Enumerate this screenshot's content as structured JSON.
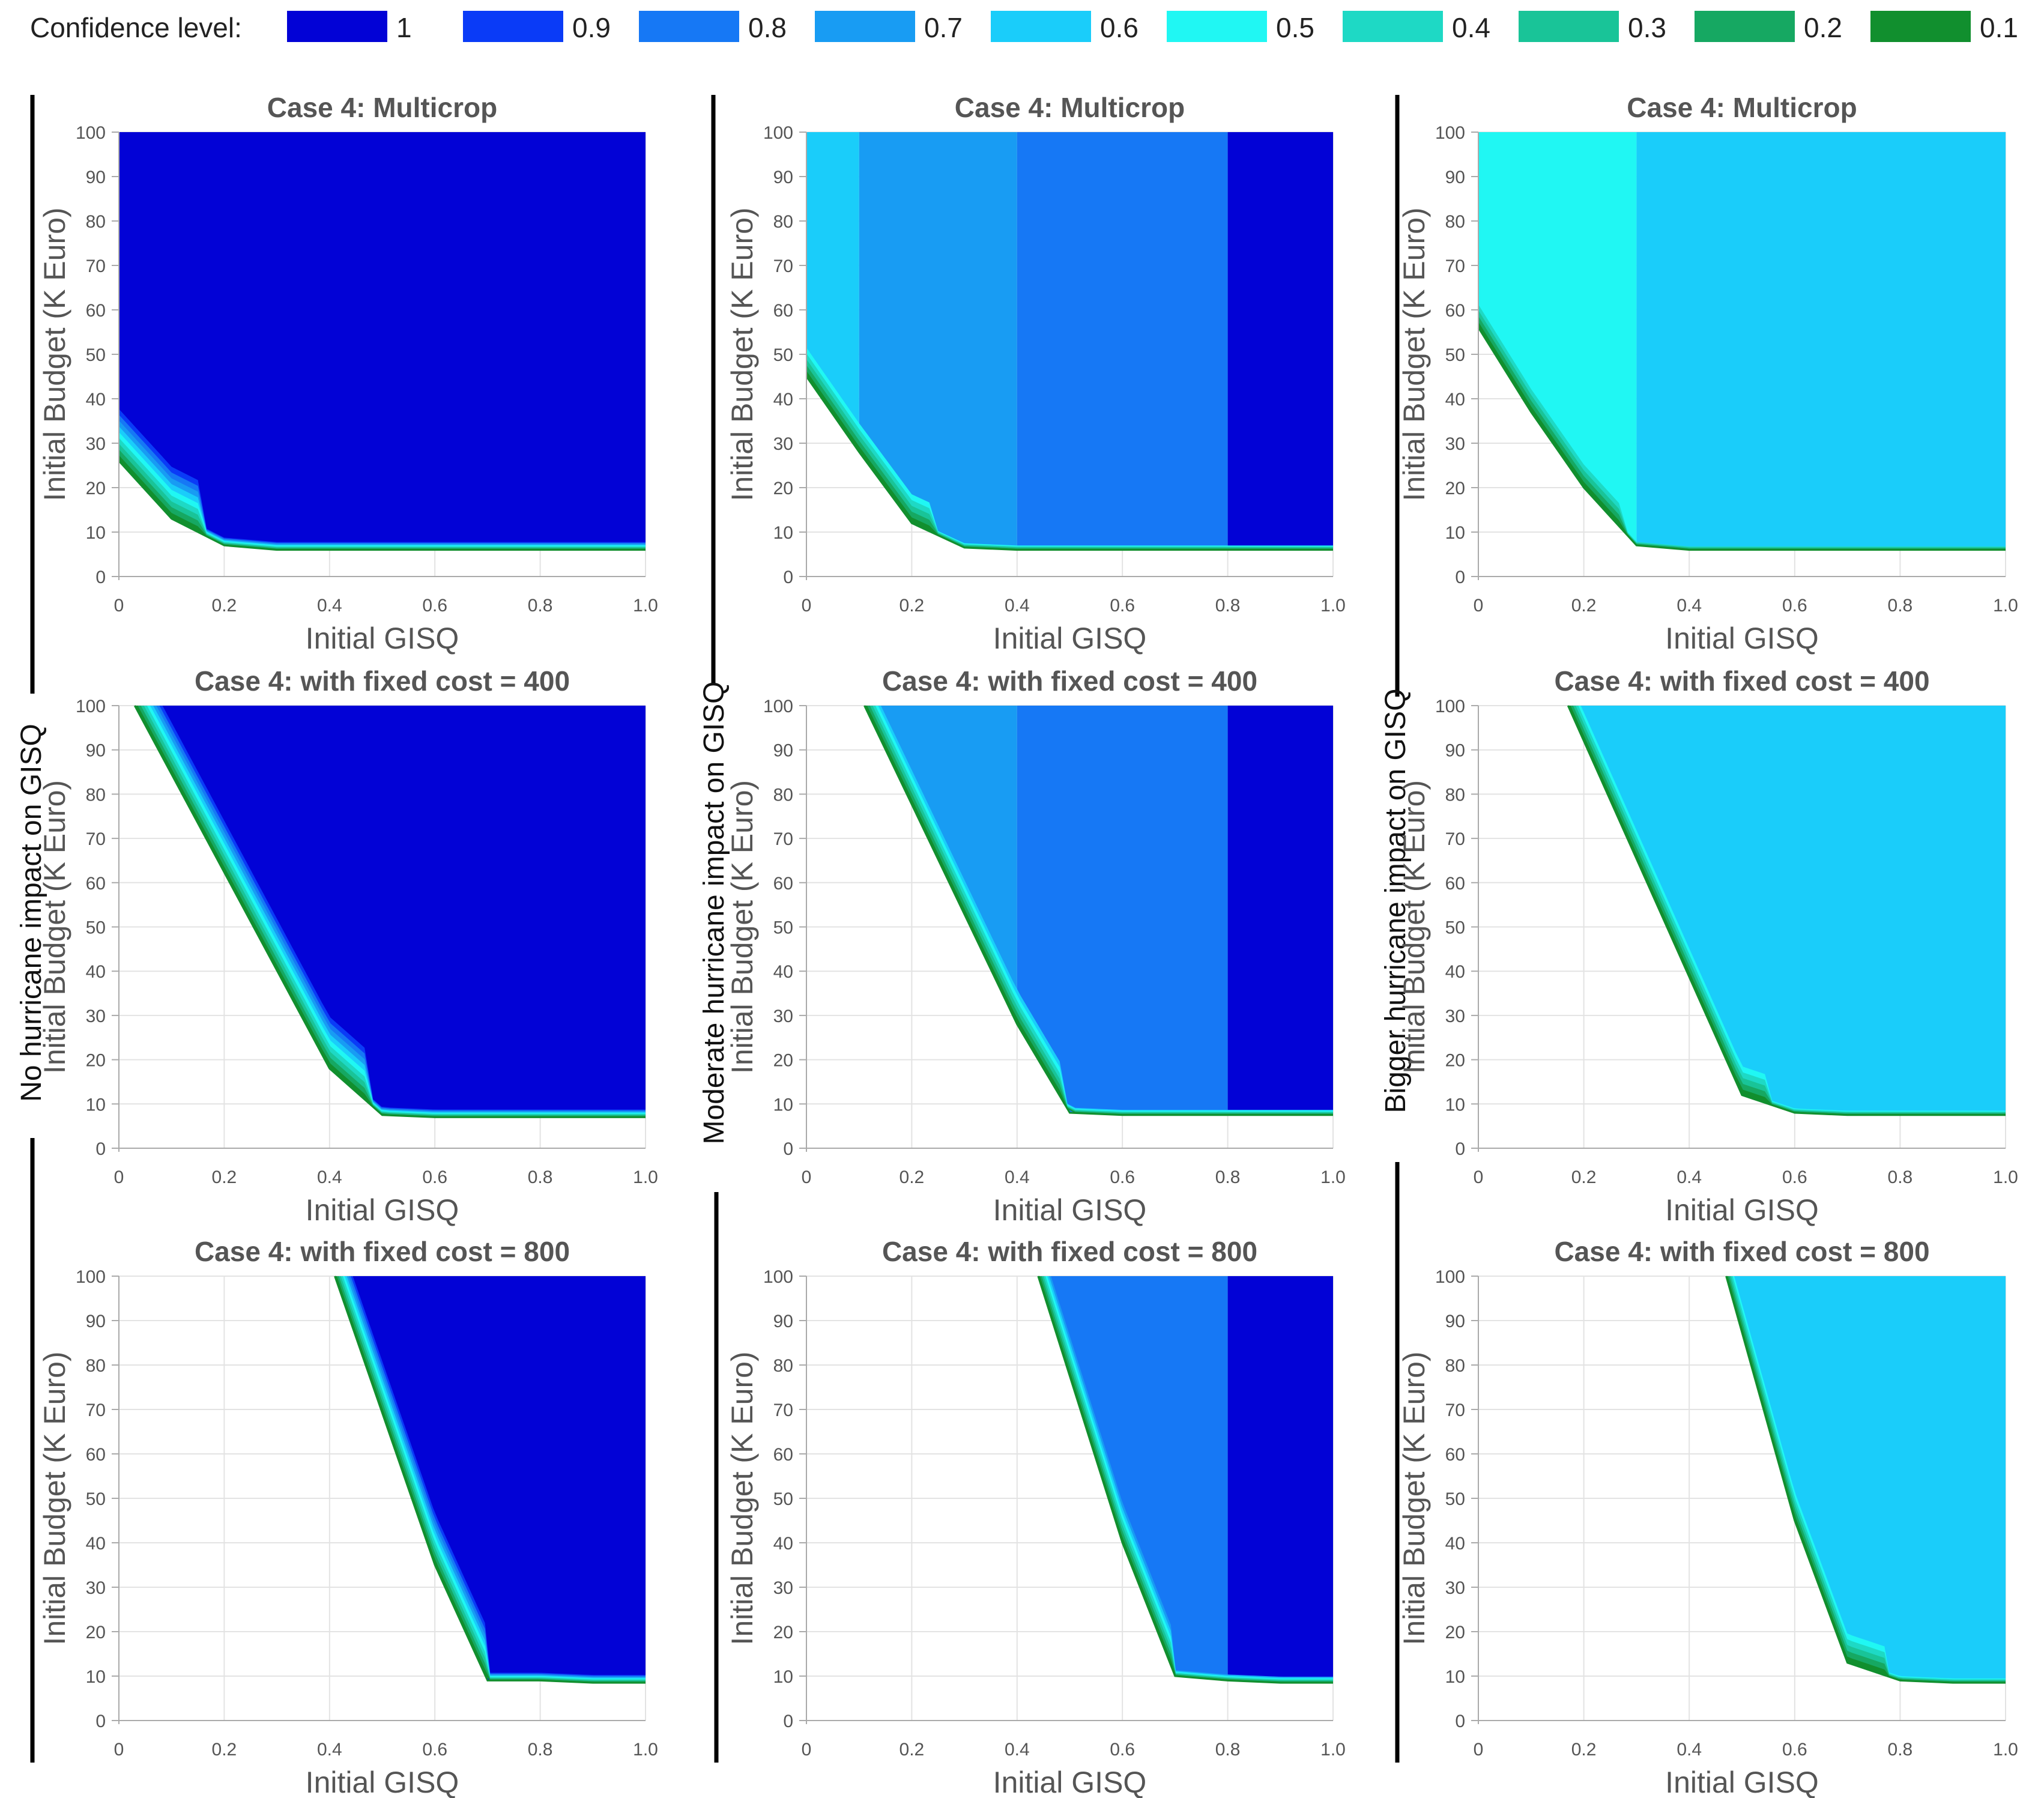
{
  "legend": {
    "label": "Confidence level:",
    "items": [
      {
        "label": "1",
        "color": "#0202D6"
      },
      {
        "label": "0.9",
        "color": "#0A3BF7"
      },
      {
        "label": "0.8",
        "color": "#1678F5"
      },
      {
        "label": "0.7",
        "color": "#189CF3"
      },
      {
        "label": "0.6",
        "color": "#1ACDFA"
      },
      {
        "label": "0.5",
        "color": "#20F7F3"
      },
      {
        "label": "0.4",
        "color": "#1ED9C5"
      },
      {
        "label": "0.3",
        "color": "#19C498"
      },
      {
        "label": "0.2",
        "color": "#16A862"
      },
      {
        "label": "0.1",
        "color": "#118F2E"
      }
    ]
  },
  "row_labels": [
    "No hurricane impact on GISQ",
    "Moderate hurricane impact on GISQ",
    "Bigger hurricane impact on GISQ"
  ],
  "chart_data": [
    {
      "type": "area",
      "title": "Case 4: Multicrop",
      "xlabel": "Initial GISQ",
      "ylabel": "Initial Budget (K Euro)",
      "xlim": [
        0,
        1
      ],
      "ylim": [
        0,
        100
      ],
      "xticks": [
        "0",
        "0.2",
        "0.4",
        "0.6",
        "0.8",
        "1.0"
      ],
      "yticks": [
        "0",
        "10",
        "20",
        "30",
        "40",
        "50",
        "60",
        "70",
        "80",
        "90",
        "100"
      ],
      "scenario": "No hurricane impact on GISQ",
      "boundary": {
        "x": [
          0,
          0.1,
          0.2,
          0.3,
          1.0
        ],
        "y": [
          26,
          13,
          7,
          6,
          6
        ]
      },
      "zones": [
        {
          "x_from": 0,
          "x_to": 1.0,
          "level": "1"
        }
      ]
    },
    {
      "type": "area",
      "title": "Case 4: Multicrop",
      "xlabel": "Initial GISQ",
      "ylabel": "Initial Budget (K Euro)",
      "xlim": [
        0,
        1
      ],
      "ylim": [
        0,
        100
      ],
      "xticks": [
        "0",
        "0.2",
        "0.4",
        "0.6",
        "0.8",
        "1.0"
      ],
      "yticks": [
        "0",
        "10",
        "20",
        "30",
        "40",
        "50",
        "60",
        "70",
        "80",
        "90",
        "100"
      ],
      "scenario": "Moderate hurricane impact on GISQ",
      "boundary": {
        "x": [
          0,
          0.1,
          0.2,
          0.3,
          0.4,
          1.0
        ],
        "y": [
          45,
          28,
          12,
          6.5,
          6,
          6
        ]
      },
      "zones": [
        {
          "x_from": 0,
          "x_to": 0.1,
          "level": "0.6"
        },
        {
          "x_from": 0.1,
          "x_to": 0.4,
          "level": "0.7"
        },
        {
          "x_from": 0.4,
          "x_to": 0.8,
          "level": "0.8"
        },
        {
          "x_from": 0.8,
          "x_to": 1.0,
          "level": "1"
        }
      ]
    },
    {
      "type": "area",
      "title": "Case 4: Multicrop",
      "xlabel": "Initial GISQ",
      "ylabel": "Initial Budget (K Euro)",
      "xlim": [
        0,
        1
      ],
      "ylim": [
        0,
        100
      ],
      "xticks": [
        "0",
        "0.2",
        "0.4",
        "0.6",
        "0.8",
        "1.0"
      ],
      "yticks": [
        "0",
        "10",
        "20",
        "30",
        "40",
        "50",
        "60",
        "70",
        "80",
        "90",
        "100"
      ],
      "scenario": "Bigger hurricane impact on GISQ",
      "boundary": {
        "x": [
          0,
          0.1,
          0.2,
          0.3,
          0.4,
          0.5,
          1.0
        ],
        "y": [
          56,
          37,
          20,
          7,
          6,
          6,
          6
        ]
      },
      "zones": [
        {
          "x_from": 0,
          "x_to": 0.3,
          "level": "0.5"
        },
        {
          "x_from": 0.3,
          "x_to": 1.0,
          "level": "0.6"
        }
      ]
    },
    {
      "type": "area",
      "title": "Case 4: with fixed cost = 400",
      "xlabel": "Initial GISQ",
      "ylabel": "Initial Budget (K Euro)",
      "xlim": [
        0,
        1
      ],
      "ylim": [
        0,
        100
      ],
      "xticks": [
        "0",
        "0.2",
        "0.4",
        "0.6",
        "0.8",
        "1.0"
      ],
      "yticks": [
        "0",
        "10",
        "20",
        "30",
        "40",
        "50",
        "60",
        "70",
        "80",
        "90",
        "100"
      ],
      "scenario": "No hurricane impact on GISQ",
      "boundary": {
        "x": [
          0.03,
          0.4,
          0.5,
          0.6,
          1.0
        ],
        "y": [
          100,
          18,
          7.5,
          7,
          7
        ]
      },
      "zones": [
        {
          "x_from": 0,
          "x_to": 1.0,
          "level": "1"
        }
      ]
    },
    {
      "type": "area",
      "title": "Case 4: with fixed cost = 400",
      "xlabel": "Initial GISQ",
      "ylabel": "Initial Budget (K Euro)",
      "xlim": [
        0,
        1
      ],
      "ylim": [
        0,
        100
      ],
      "xticks": [
        "0",
        "0.2",
        "0.4",
        "0.6",
        "0.8",
        "1.0"
      ],
      "yticks": [
        "0",
        "10",
        "20",
        "30",
        "40",
        "50",
        "60",
        "70",
        "80",
        "90",
        "100"
      ],
      "scenario": "Moderate hurricane impact on GISQ",
      "boundary": {
        "x": [
          0.11,
          0.4,
          0.5,
          0.6,
          1.0
        ],
        "y": [
          100,
          28,
          8,
          7.5,
          7.5
        ]
      },
      "zones": [
        {
          "x_from": 0,
          "x_to": 0.4,
          "level": "0.7"
        },
        {
          "x_from": 0.4,
          "x_to": 0.8,
          "level": "0.8"
        },
        {
          "x_from": 0.8,
          "x_to": 1.0,
          "level": "1"
        }
      ]
    },
    {
      "type": "area",
      "title": "Case 4: with fixed cost = 400",
      "xlabel": "Initial GISQ",
      "ylabel": "Initial Budget (K Euro)",
      "xlim": [
        0,
        1
      ],
      "ylim": [
        0,
        100
      ],
      "xticks": [
        "0",
        "0.2",
        "0.4",
        "0.6",
        "0.8",
        "1.0"
      ],
      "yticks": [
        "0",
        "10",
        "20",
        "30",
        "40",
        "50",
        "60",
        "70",
        "80",
        "90",
        "100"
      ],
      "scenario": "Bigger hurricane impact on GISQ",
      "boundary": {
        "x": [
          0.17,
          0.5,
          0.6,
          0.7,
          1.0
        ],
        "y": [
          100,
          12,
          8,
          7.5,
          7.5
        ]
      },
      "zones": [
        {
          "x_from": 0,
          "x_to": 1.0,
          "level": "0.6"
        }
      ]
    },
    {
      "type": "area",
      "title": "Case 4: with fixed cost = 800",
      "xlabel": "Initial GISQ",
      "ylabel": "Initial Budget (K Euro)",
      "xlim": [
        0,
        1
      ],
      "ylim": [
        0,
        100
      ],
      "xticks": [
        "0",
        "0.2",
        "0.4",
        "0.6",
        "0.8",
        "1.0"
      ],
      "yticks": [
        "0",
        "10",
        "20",
        "30",
        "40",
        "50",
        "60",
        "70",
        "80",
        "90",
        "100"
      ],
      "scenario": "No hurricane impact on GISQ",
      "boundary": {
        "x": [
          0.41,
          0.6,
          0.7,
          0.8,
          0.9,
          1.0
        ],
        "y": [
          100,
          35,
          9,
          9,
          8.5,
          8.5
        ]
      },
      "zones": [
        {
          "x_from": 0,
          "x_to": 1.0,
          "level": "1"
        }
      ]
    },
    {
      "type": "area",
      "title": "Case 4: with fixed cost = 800",
      "xlabel": "Initial GISQ",
      "ylabel": "Initial Budget (K Euro)",
      "xlim": [
        0,
        1
      ],
      "ylim": [
        0,
        100
      ],
      "xticks": [
        "0",
        "0.2",
        "0.4",
        "0.6",
        "0.8",
        "1.0"
      ],
      "yticks": [
        "0",
        "10",
        "20",
        "30",
        "40",
        "50",
        "60",
        "70",
        "80",
        "90",
        "100"
      ],
      "scenario": "Moderate hurricane impact on GISQ",
      "boundary": {
        "x": [
          0.44,
          0.6,
          0.7,
          0.8,
          0.9,
          1.0
        ],
        "y": [
          100,
          40,
          10,
          9,
          8.5,
          8.5
        ]
      },
      "zones": [
        {
          "x_from": 0,
          "x_to": 0.8,
          "level": "0.8"
        },
        {
          "x_from": 0.8,
          "x_to": 1.0,
          "level": "1"
        }
      ]
    },
    {
      "type": "area",
      "title": "Case 4: with fixed cost = 800",
      "xlabel": "Initial GISQ",
      "ylabel": "Initial Budget (K Euro)",
      "xlim": [
        0,
        1
      ],
      "ylim": [
        0,
        100
      ],
      "xticks": [
        "0",
        "0.2",
        "0.4",
        "0.6",
        "0.8",
        "1.0"
      ],
      "yticks": [
        "0",
        "10",
        "20",
        "30",
        "40",
        "50",
        "60",
        "70",
        "80",
        "90",
        "100"
      ],
      "scenario": "Bigger hurricane impact on GISQ",
      "boundary": {
        "x": [
          0.47,
          0.6,
          0.7,
          0.8,
          0.9,
          1.0
        ],
        "y": [
          100,
          45,
          13,
          9,
          8.5,
          8.5
        ]
      },
      "zones": [
        {
          "x_from": 0,
          "x_to": 1.0,
          "level": "0.6"
        }
      ]
    }
  ]
}
